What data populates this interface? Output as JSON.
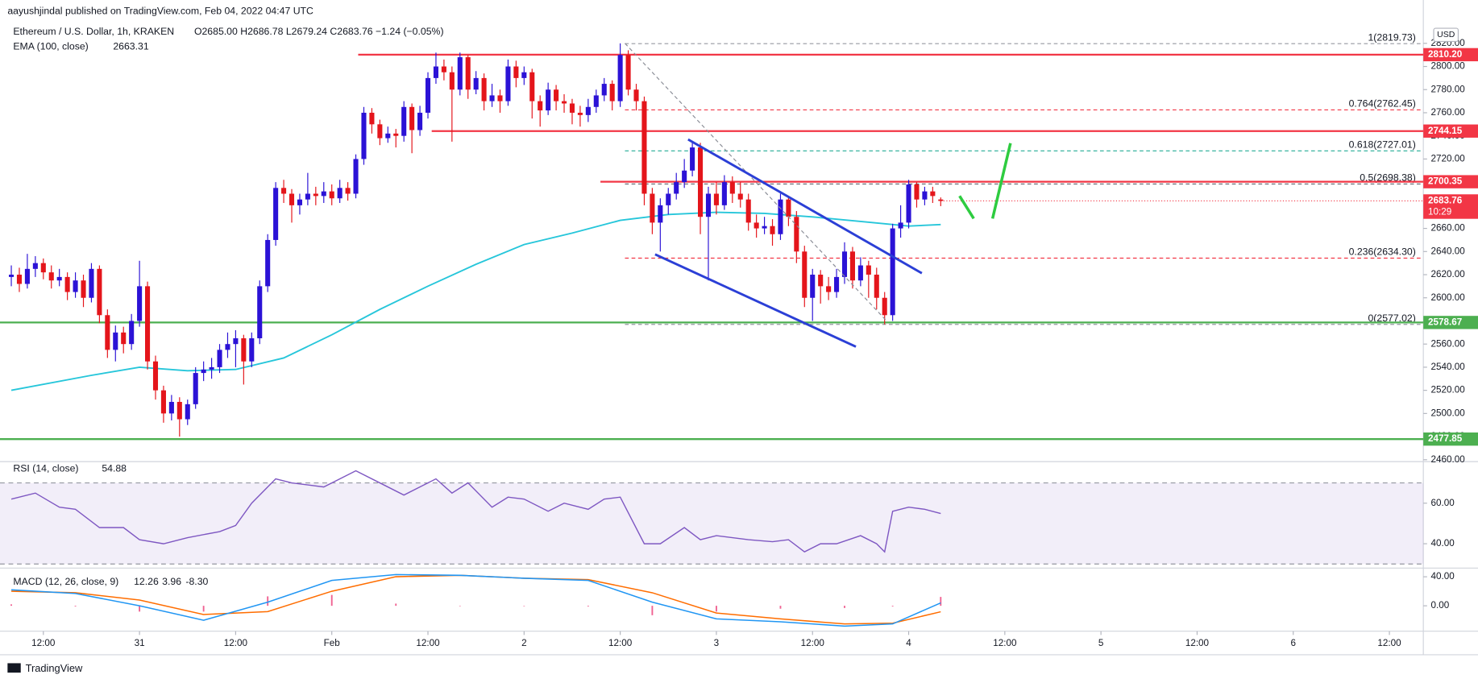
{
  "header": {
    "published": "aayushjindal published on TradingView.com, Feb 04, 2022 04:47 UTC"
  },
  "footer": {
    "brand": "TradingView"
  },
  "chart_data": [
    {
      "type": "candlestick",
      "title": "Ethereum / U.S. Dollar, 1h, KRAKEN",
      "ohlc_text": "O2685.00 H2686.78 L2679.24 C2683.76 −1.24 (−0.05%)",
      "currency": "USD",
      "up_color": "#2b12d6",
      "down_color": "#e4151b",
      "ylim": [
        2460,
        2820
      ],
      "yticks": [
        {
          "value": 2460,
          "label": "2460.00"
        },
        {
          "value": 2480,
          "label": "2480.00"
        },
        {
          "value": 2500,
          "label": "2500.00"
        },
        {
          "value": 2520,
          "label": "2520.00"
        },
        {
          "value": 2540,
          "label": "2540.00"
        },
        {
          "value": 2560,
          "label": "2560.00"
        },
        {
          "value": 2580,
          "label": "2580.00"
        },
        {
          "value": 2600,
          "label": "2600.00"
        },
        {
          "value": 2620,
          "label": "2620.00"
        },
        {
          "value": 2640,
          "label": "2640.00"
        },
        {
          "value": 2660,
          "label": "2660.00"
        },
        {
          "value": 2680,
          "label": "2680.00"
        },
        {
          "value": 2700,
          "label": "2700.00"
        },
        {
          "value": 2720,
          "label": "2720.00"
        },
        {
          "value": 2740,
          "label": "2740.00"
        },
        {
          "value": 2760,
          "label": "2760.00"
        },
        {
          "value": 2780,
          "label": "2780.00"
        },
        {
          "value": 2800,
          "label": "2800.00"
        },
        {
          "value": 2820,
          "label": "2820.00"
        }
      ],
      "xticks": [
        {
          "value": 4,
          "label": "12:00"
        },
        {
          "value": 16,
          "label": "31"
        },
        {
          "value": 28,
          "label": "12:00"
        },
        {
          "value": 40,
          "label": "Feb"
        },
        {
          "value": 52,
          "label": "12:00"
        },
        {
          "value": 64,
          "label": "2"
        },
        {
          "value": 76,
          "label": "12:00"
        },
        {
          "value": 88,
          "label": "3"
        },
        {
          "value": 100,
          "label": "12:00"
        },
        {
          "value": 112,
          "label": "4"
        },
        {
          "value": 124,
          "label": "12:00"
        },
        {
          "value": 136,
          "label": "5"
        },
        {
          "value": 148,
          "label": "12:00"
        },
        {
          "value": 160,
          "label": "6"
        },
        {
          "value": 172,
          "label": "12:00"
        }
      ],
      "candles": [
        [
          2618,
          2628,
          2610,
          2620
        ],
        [
          2620,
          2626,
          2605,
          2612
        ],
        [
          2612,
          2638,
          2608,
          2625
        ],
        [
          2625,
          2636,
          2618,
          2630
        ],
        [
          2630,
          2634,
          2616,
          2622
        ],
        [
          2622,
          2628,
          2608,
          2615
        ],
        [
          2615,
          2625,
          2610,
          2618
        ],
        [
          2618,
          2622,
          2598,
          2605
        ],
        [
          2605,
          2622,
          2600,
          2615
        ],
        [
          2615,
          2620,
          2592,
          2600
        ],
        [
          2600,
          2630,
          2596,
          2625
        ],
        [
          2625,
          2628,
          2578,
          2585
        ],
        [
          2585,
          2590,
          2548,
          2555
        ],
        [
          2555,
          2576,
          2545,
          2570
        ],
        [
          2570,
          2575,
          2552,
          2560
        ],
        [
          2560,
          2586,
          2555,
          2580
        ],
        [
          2580,
          2632,
          2575,
          2610
        ],
        [
          2610,
          2614,
          2538,
          2545
        ],
        [
          2545,
          2550,
          2512,
          2520
        ],
        [
          2520,
          2524,
          2492,
          2500
        ],
        [
          2500,
          2516,
          2494,
          2510
        ],
        [
          2510,
          2514,
          2480,
          2495
        ],
        [
          2495,
          2512,
          2490,
          2508
        ],
        [
          2508,
          2540,
          2504,
          2535
        ],
        [
          2535,
          2545,
          2528,
          2538
        ],
        [
          2538,
          2548,
          2530,
          2540
        ],
        [
          2540,
          2560,
          2535,
          2555
        ],
        [
          2555,
          2570,
          2548,
          2560
        ],
        [
          2560,
          2572,
          2540,
          2565
        ],
        [
          2565,
          2568,
          2525,
          2545
        ],
        [
          2545,
          2570,
          2540,
          2565
        ],
        [
          2565,
          2615,
          2560,
          2610
        ],
        [
          2610,
          2655,
          2605,
          2650
        ],
        [
          2650,
          2700,
          2645,
          2695
        ],
        [
          2695,
          2702,
          2682,
          2690
        ],
        [
          2690,
          2694,
          2665,
          2680
        ],
        [
          2680,
          2690,
          2672,
          2685
        ],
        [
          2685,
          2708,
          2680,
          2690
        ],
        [
          2690,
          2696,
          2680,
          2688
        ],
        [
          2688,
          2700,
          2682,
          2692
        ],
        [
          2692,
          2698,
          2680,
          2686
        ],
        [
          2686,
          2702,
          2682,
          2695
        ],
        [
          2695,
          2700,
          2684,
          2690
        ],
        [
          2690,
          2724,
          2686,
          2720
        ],
        [
          2720,
          2765,
          2715,
          2760
        ],
        [
          2760,
          2764,
          2742,
          2750
        ],
        [
          2750,
          2754,
          2732,
          2738
        ],
        [
          2738,
          2748,
          2734,
          2742
        ],
        [
          2742,
          2746,
          2730,
          2740
        ],
        [
          2740,
          2770,
          2735,
          2765
        ],
        [
          2765,
          2768,
          2725,
          2745
        ],
        [
          2745,
          2766,
          2740,
          2760
        ],
        [
          2760,
          2795,
          2755,
          2790
        ],
        [
          2790,
          2812,
          2785,
          2800
        ],
        [
          2800,
          2806,
          2788,
          2795
        ],
        [
          2795,
          2800,
          2735,
          2780
        ],
        [
          2780,
          2812,
          2775,
          2808
        ],
        [
          2808,
          2810,
          2772,
          2780
        ],
        [
          2780,
          2796,
          2776,
          2790
        ],
        [
          2790,
          2794,
          2762,
          2770
        ],
        [
          2770,
          2785,
          2765,
          2775
        ],
        [
          2775,
          2780,
          2760,
          2770
        ],
        [
          2770,
          2806,
          2766,
          2800
        ],
        [
          2800,
          2805,
          2782,
          2790
        ],
        [
          2790,
          2800,
          2784,
          2795
        ],
        [
          2795,
          2798,
          2755,
          2770
        ],
        [
          2770,
          2775,
          2748,
          2762
        ],
        [
          2762,
          2786,
          2758,
          2780
        ],
        [
          2780,
          2784,
          2762,
          2770
        ],
        [
          2770,
          2776,
          2760,
          2768
        ],
        [
          2768,
          2772,
          2750,
          2760
        ],
        [
          2760,
          2766,
          2748,
          2758
        ],
        [
          2758,
          2772,
          2752,
          2765
        ],
        [
          2765,
          2780,
          2760,
          2775
        ],
        [
          2775,
          2790,
          2770,
          2785
        ],
        [
          2785,
          2788,
          2762,
          2770
        ],
        [
          2770,
          2820,
          2765,
          2810
        ],
        [
          2810,
          2814,
          2775,
          2780
        ],
        [
          2780,
          2785,
          2762,
          2770
        ],
        [
          2770,
          2774,
          2680,
          2690
        ],
        [
          2690,
          2695,
          2655,
          2665
        ],
        [
          2665,
          2686,
          2640,
          2680
        ],
        [
          2680,
          2695,
          2672,
          2690
        ],
        [
          2690,
          2708,
          2685,
          2700
        ],
        [
          2700,
          2720,
          2695,
          2710
        ],
        [
          2710,
          2735,
          2705,
          2730
        ],
        [
          2730,
          2734,
          2655,
          2670
        ],
        [
          2670,
          2696,
          2615,
          2690
        ],
        [
          2690,
          2700,
          2672,
          2680
        ],
        [
          2680,
          2706,
          2676,
          2700
        ],
        [
          2700,
          2705,
          2682,
          2690
        ],
        [
          2690,
          2700,
          2678,
          2685
        ],
        [
          2685,
          2690,
          2658,
          2665
        ],
        [
          2665,
          2672,
          2652,
          2660
        ],
        [
          2660,
          2670,
          2655,
          2662
        ],
        [
          2662,
          2668,
          2645,
          2655
        ],
        [
          2655,
          2690,
          2650,
          2685
        ],
        [
          2685,
          2688,
          2662,
          2670
        ],
        [
          2670,
          2675,
          2630,
          2640
        ],
        [
          2640,
          2645,
          2592,
          2600
        ],
        [
          2600,
          2625,
          2580,
          2620
        ],
        [
          2620,
          2624,
          2595,
          2610
        ],
        [
          2610,
          2618,
          2598,
          2605
        ],
        [
          2605,
          2625,
          2600,
          2618
        ],
        [
          2618,
          2648,
          2612,
          2640
        ],
        [
          2640,
          2644,
          2608,
          2615
        ],
        [
          2615,
          2635,
          2610,
          2628
        ],
        [
          2628,
          2632,
          2600,
          2620
        ],
        [
          2620,
          2626,
          2590,
          2600
        ],
        [
          2600,
          2605,
          2577,
          2585
        ],
        [
          2585,
          2664,
          2580,
          2660
        ],
        [
          2660,
          2680,
          2652,
          2665
        ],
        [
          2665,
          2702,
          2660,
          2698
        ],
        [
          2698,
          2700,
          2678,
          2685
        ],
        [
          2685,
          2696,
          2680,
          2692
        ],
        [
          2692,
          2696,
          2682,
          2688
        ],
        [
          2685,
          2686.78,
          2679.24,
          2683.76
        ]
      ],
      "ema": {
        "name": "EMA (100, close)",
        "value_label": "2663.31",
        "color": "#26c6da",
        "x": [
          0,
          10,
          16,
          22,
          28,
          34,
          40,
          46,
          52,
          58,
          64,
          70,
          76,
          82,
          88,
          94,
          100,
          106,
          112,
          116
        ],
        "values": [
          2520,
          2533,
          2540,
          2537,
          2538,
          2548,
          2568,
          2590,
          2610,
          2629,
          2646,
          2656,
          2667,
          2672,
          2674,
          2673,
          2670,
          2666,
          2662,
          2663.31
        ]
      },
      "price_lines": [
        {
          "value": 2810.2,
          "label": "2810.20",
          "color": "#f23645"
        },
        {
          "value": 2744.15,
          "label": "2744.15",
          "color": "#f23645"
        },
        {
          "value": 2700.35,
          "label": "2700.35",
          "color": "#f23645"
        },
        {
          "value": 2578.67,
          "label": "2578.67",
          "color": "#4caf50"
        },
        {
          "value": 2477.85,
          "label": "2477.85",
          "color": "#4caf50"
        }
      ],
      "current": {
        "value": 2683.76,
        "label": "2683.76",
        "countdown": "10:29",
        "color": "#f23645"
      },
      "fib_levels": [
        {
          "value": 2819.73,
          "label": "1(2819.73)",
          "color": "#9598a1"
        },
        {
          "value": 2762.45,
          "label": "0.764(2762.45)",
          "color": "#f23645"
        },
        {
          "value": 2727.01,
          "label": "0.618(2727.01)",
          "color": "#22ab94"
        },
        {
          "value": 2698.38,
          "label": "0.5(2698.38)",
          "color": "#5d606b"
        },
        {
          "value": 2634.3,
          "label": "0.236(2634.30)",
          "color": "#f23645"
        },
        {
          "value": 2577.02,
          "label": "0(2577.02)",
          "color": "#9598a1"
        }
      ]
    },
    {
      "type": "line",
      "name": "RSI (14, close)",
      "value_label": "54.88",
      "color": "#7e57c2",
      "ylim": [
        28,
        80.5
      ],
      "yticks": [
        {
          "value": 60,
          "label": "60.00"
        },
        {
          "value": 40,
          "label": "40.00"
        }
      ],
      "band": [
        30,
        70
      ],
      "x": [
        0,
        3,
        6,
        8,
        11,
        14,
        16,
        19,
        22,
        26,
        28,
        30,
        33,
        35,
        39,
        43,
        46,
        49,
        53,
        55,
        57,
        60,
        62,
        64,
        67,
        69,
        72,
        74,
        76,
        79,
        81,
        84,
        86,
        88,
        92,
        95,
        97,
        99,
        101,
        103,
        106,
        108,
        109,
        110,
        112,
        114,
        116
      ],
      "values": [
        62,
        65,
        58,
        57,
        48,
        48,
        42,
        40,
        43,
        46,
        49,
        60,
        72,
        70,
        68,
        76,
        70,
        64,
        72,
        65,
        70,
        58,
        63,
        62,
        56,
        60,
        57,
        62,
        63,
        40,
        40,
        48,
        42,
        44,
        42,
        41,
        42,
        36,
        40,
        40,
        44,
        40,
        36,
        56,
        58,
        57,
        54.88
      ]
    },
    {
      "type": "macd",
      "name": "MACD (12, 26, close, 9)",
      "ylim": [
        -35,
        52
      ],
      "yticks": [
        {
          "value": 40,
          "label": "40.00"
        },
        {
          "value": 0,
          "label": "0.00"
        }
      ],
      "histogram": {
        "value_label": "12.26",
        "color": "#e91e63",
        "x": [
          0,
          8,
          16,
          24,
          32,
          40,
          48,
          56,
          64,
          72,
          80,
          88,
          96,
          104,
          110,
          116
        ],
        "values": [
          2,
          -1,
          -8,
          -8,
          13,
          15,
          3,
          0,
          0,
          -1,
          -13,
          -8,
          -4,
          -3,
          -1,
          12.26
        ]
      },
      "macd": {
        "value_label": "3.96",
        "color": "#2196f3",
        "x": [
          0,
          8,
          16,
          24,
          32,
          40,
          48,
          56,
          64,
          72,
          80,
          88,
          96,
          104,
          110,
          116
        ],
        "values": [
          22,
          17,
          0,
          -20,
          5,
          35,
          43,
          42,
          38,
          35,
          5,
          -18,
          -22,
          -28,
          -25,
          3.96
        ]
      },
      "signal": {
        "value_label": "-8.30",
        "color": "#ff6d00",
        "x": [
          0,
          8,
          16,
          24,
          32,
          40,
          48,
          56,
          64,
          72,
          80,
          88,
          96,
          104,
          110,
          116
        ],
        "values": [
          20,
          18,
          8,
          -12,
          -8,
          20,
          40,
          42,
          38,
          36,
          18,
          -10,
          -18,
          -25,
          -24,
          -8.3
        ]
      }
    }
  ]
}
